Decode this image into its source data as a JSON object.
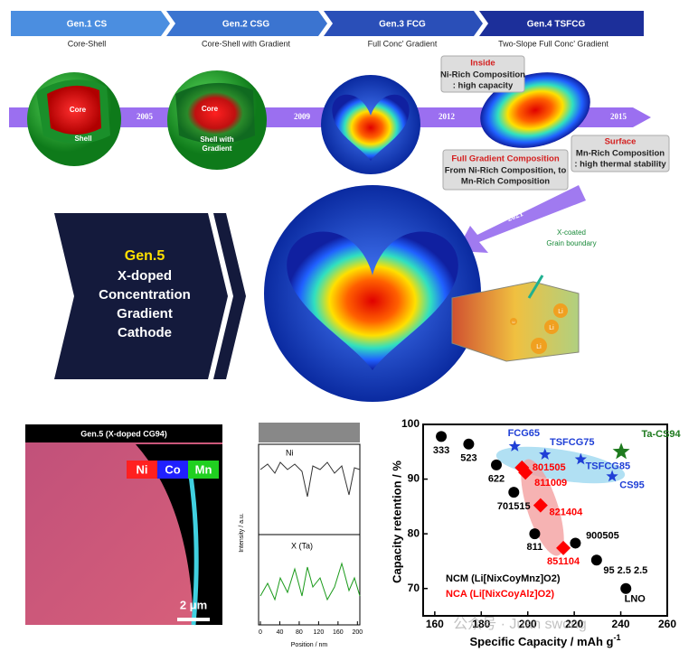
{
  "timeline": {
    "generations": [
      {
        "title": "Gen.1 CS",
        "subtitle": "Core-Shell"
      },
      {
        "title": "Gen.2 CSG",
        "subtitle": "Core-Shell with Gradient"
      },
      {
        "title": "Gen.3 FCG",
        "subtitle": "Full Conc’ Gradient"
      },
      {
        "title": "Gen.4 TSFCG",
        "subtitle": "Two-Slope Full Conc’ Gradient"
      }
    ],
    "years": [
      "2005",
      "2009",
      "2012",
      "2015",
      "2021"
    ]
  },
  "sphere_labels": {
    "gen1_core": "Core",
    "gen1_shell": "Shell",
    "gen2_core": "Core",
    "gen2_shell": [
      "Shell with",
      "Gradient"
    ]
  },
  "gen4_callouts": {
    "inside_title": "Inside",
    "inside_lines": [
      "Ni-Rich Composition",
      ": high capacity"
    ],
    "gradient_title": "Full Gradient Composition",
    "gradient_lines": [
      "From Ni-Rich Composition, to",
      "Mn-Rich Composition"
    ],
    "surface_title": "Surface",
    "surface_lines": [
      "Mn-Rich Composition",
      ": high thermal stability"
    ]
  },
  "gen5": {
    "title": "Gen.5",
    "lines": [
      "X-doped",
      "Concentration",
      "Gradient",
      "Cathode"
    ],
    "coating": [
      "X-coated",
      "Grain boundary"
    ],
    "ion": "Li"
  },
  "eds": {
    "title": "Gen.5 (X-doped CG94)",
    "elements": [
      "Ni",
      "Co",
      "Mn"
    ],
    "scale": "2 μm"
  },
  "profile": {
    "traces": [
      "Ni",
      "X (Ta)"
    ],
    "ylabel": "Intensity / a.u.",
    "xlabel": "Position / nm",
    "xlim": [
      0,
      205
    ],
    "xticks": [
      0,
      40,
      80,
      120,
      160,
      200
    ]
  },
  "watermark": "公众号 · Juan swong",
  "chart_data": {
    "type": "scatter",
    "xlabel": "Specific Capacity / mAh g",
    "xlabel_exponent": "-1",
    "ylabel": "Capacity retention / %",
    "xlim": [
      155,
      260
    ],
    "xticks": [
      160,
      180,
      200,
      220,
      240,
      260
    ],
    "ylim": [
      65,
      100
    ],
    "yticks": [
      70,
      80,
      90,
      100
    ],
    "series": [
      {
        "name": "NCM (Li[NixCoyMnz]O2)",
        "color": "#000000",
        "marker": "circle",
        "x": [
          162.8,
          174.6,
          186.5,
          194,
          203,
          220.5,
          229.6,
          242.2
        ],
        "values": [
          97.8,
          96.4,
          92.6,
          87.6,
          80,
          78.3,
          75.2,
          70
        ],
        "point_labels": [
          "333",
          "523",
          "622",
          "701515",
          "811",
          "900505",
          "95 2.5 2.5",
          "LNO"
        ]
      },
      {
        "name": "NCA (Li[NixCoyAlz]O2)",
        "color": "#ff0000",
        "marker": "diamond",
        "x": [
          197.5,
          199,
          205.5,
          215.3
        ],
        "values": [
          92.1,
          91.2,
          85.2,
          77.4
        ],
        "point_labels": [
          "801505",
          "811009",
          "821404",
          "851104"
        ]
      },
      {
        "color": "#1f3fd6",
        "marker": "star",
        "x": [
          194.4,
          207.4,
          222.8,
          236.3
        ],
        "values": [
          96,
          94.5,
          93.6,
          90.5
        ],
        "point_labels": [
          "FCG65",
          "TSFCG75",
          "TSFCG85",
          "CS95"
        ]
      },
      {
        "color": "#1e7a1e",
        "marker": "star",
        "x": [
          240.2
        ],
        "values": [
          95
        ],
        "point_labels": [
          "Ta-CS94"
        ]
      }
    ]
  }
}
